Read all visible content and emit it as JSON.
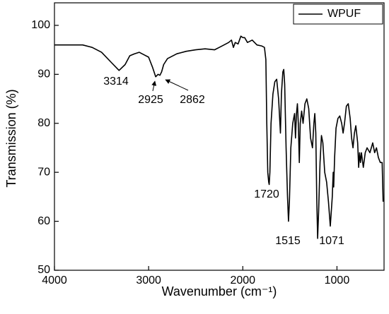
{
  "chart_data": {
    "type": "line",
    "xlabel": "Wavenumber (cm⁻¹)",
    "ylabel": "Transmission (%)",
    "xlim": [
      4000,
      500
    ],
    "ylim": [
      50,
      104.6
    ],
    "xticks": [
      4000,
      3000,
      2000,
      1000
    ],
    "yticks": [
      50,
      60,
      70,
      80,
      90,
      100
    ],
    "legend": "upper right",
    "annotations": [
      "3314",
      "2925",
      "2862",
      "1720",
      "1515",
      "1071"
    ],
    "x": [
      4000,
      3700,
      3600,
      3500,
      3400,
      3314,
      3250,
      3200,
      3150,
      3100,
      3050,
      3000,
      2960,
      2925,
      2900,
      2880,
      2862,
      2840,
      2800,
      2700,
      2600,
      2500,
      2400,
      2300,
      2250,
      2200,
      2150,
      2120,
      2100,
      2080,
      2050,
      2020,
      2000,
      1980,
      1950,
      1900,
      1850,
      1800,
      1770,
      1755,
      1745,
      1735,
      1725,
      1720,
      1712,
      1700,
      1680,
      1660,
      1640,
      1620,
      1600,
      1590,
      1575,
      1565,
      1555,
      1540,
      1525,
      1515,
      1505,
      1490,
      1470,
      1450,
      1440,
      1430,
      1420,
      1410,
      1400,
      1390,
      1375,
      1360,
      1340,
      1320,
      1300,
      1280,
      1260,
      1245,
      1235,
      1225,
      1215,
      1205,
      1195,
      1180,
      1165,
      1150,
      1130,
      1110,
      1090,
      1071,
      1060,
      1050,
      1040,
      1035,
      1025,
      1010,
      990,
      970,
      950,
      935,
      920,
      900,
      880,
      860,
      845,
      830,
      815,
      800,
      780,
      770,
      760,
      750,
      740,
      720,
      700,
      680,
      650,
      620,
      600,
      580,
      560,
      540,
      520,
      510
    ],
    "series": [
      {
        "name": "WPUF",
        "color": "#000000",
        "values": [
          96,
          96,
          95.5,
          94.5,
          92.5,
          90.8,
          92,
          93.8,
          94.2,
          94.5,
          94,
          93.5,
          91.5,
          89.5,
          90,
          89.8,
          90.5,
          92,
          93.2,
          94.2,
          94.7,
          95,
          95.2,
          95,
          95.5,
          96,
          96.5,
          97,
          95.5,
          96.5,
          96.2,
          97.8,
          97.5,
          97.5,
          96.5,
          97,
          96,
          95.8,
          95.5,
          93,
          80,
          70,
          68,
          67.5,
          70,
          80,
          86,
          88.5,
          89,
          85,
          78,
          86,
          90.5,
          91,
          88,
          75,
          65,
          60,
          64,
          75,
          80,
          82,
          77,
          82,
          84,
          80,
          72,
          80,
          82.5,
          80,
          84,
          85,
          83,
          77,
          75,
          80,
          82,
          78,
          65,
          56.5,
          62,
          72,
          77.5,
          76,
          70,
          68,
          64,
          59,
          62,
          65,
          70,
          67,
          73,
          79,
          81,
          81.5,
          80,
          78,
          80,
          83.5,
          84,
          81,
          77,
          75,
          78,
          79.5,
          76,
          71,
          74,
          72,
          74,
          71,
          74,
          75,
          74,
          76,
          74,
          75,
          73,
          72,
          72,
          64
        ]
      }
    ]
  }
}
